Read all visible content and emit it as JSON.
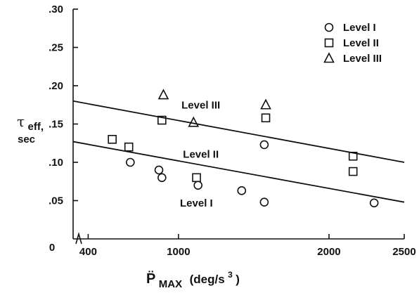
{
  "chart_data": {
    "type": "scatter",
    "title": "",
    "ylabel": {
      "symbol": "τ",
      "sub": "eff,",
      "line2": "sec"
    },
    "xlabel": {
      "symbol": "P̈",
      "sub": "MAX",
      "units_open": "(deg/s",
      "units_sup": "3",
      "units_close": ")"
    },
    "ylim": [
      0,
      0.3
    ],
    "xlim": [
      300,
      2500
    ],
    "y_ticks": [
      {
        "value": 0.05,
        "label": ".05"
      },
      {
        "value": 0.1,
        "label": ".10"
      },
      {
        "value": 0.15,
        "label": ".15"
      },
      {
        "value": 0.2,
        "label": ".20"
      },
      {
        "value": 0.25,
        "label": ".25"
      },
      {
        "value": 0.3,
        "label": ".30"
      }
    ],
    "x_ticks": [
      {
        "value": 400,
        "label": "400"
      },
      {
        "value": 1000,
        "label": "1000"
      },
      {
        "value": 2000,
        "label": "2000"
      },
      {
        "value": 2500,
        "label": "2500"
      }
    ],
    "origin_label": "0",
    "axis_break": true,
    "legend_position": "top-right",
    "series": [
      {
        "name": "Level I",
        "marker": "circle",
        "points": [
          {
            "x": 680,
            "y": 0.1
          },
          {
            "x": 870,
            "y": 0.09
          },
          {
            "x": 890,
            "y": 0.08
          },
          {
            "x": 1130,
            "y": 0.07
          },
          {
            "x": 1420,
            "y": 0.063
          },
          {
            "x": 1570,
            "y": 0.123
          },
          {
            "x": 1570,
            "y": 0.048
          },
          {
            "x": 2300,
            "y": 0.047
          }
        ]
      },
      {
        "name": "Level II",
        "marker": "square",
        "points": [
          {
            "x": 560,
            "y": 0.13
          },
          {
            "x": 670,
            "y": 0.12
          },
          {
            "x": 890,
            "y": 0.155
          },
          {
            "x": 1120,
            "y": 0.08
          },
          {
            "x": 1580,
            "y": 0.158
          },
          {
            "x": 2160,
            "y": 0.108
          },
          {
            "x": 2160,
            "y": 0.088
          }
        ]
      },
      {
        "name": "Level III",
        "marker": "triangle",
        "points": [
          {
            "x": 900,
            "y": 0.188
          },
          {
            "x": 1100,
            "y": 0.152
          },
          {
            "x": 1580,
            "y": 0.175
          }
        ]
      }
    ],
    "fit_lines": [
      {
        "name": "Level I",
        "label": "Level I",
        "from": [
          300,
          0.127
        ],
        "to": [
          2500,
          0.048
        ]
      },
      {
        "name": "Level II-III",
        "label": "Level II",
        "from": [
          300,
          0.18
        ],
        "to": [
          2500,
          0.1
        ]
      }
    ],
    "annotations": [
      {
        "text": "Level III",
        "x": 1020,
        "y": 0.17
      },
      {
        "text": "Level II",
        "x": 1030,
        "y": 0.106
      },
      {
        "text": "Level I",
        "x": 1010,
        "y": 0.042
      }
    ]
  }
}
